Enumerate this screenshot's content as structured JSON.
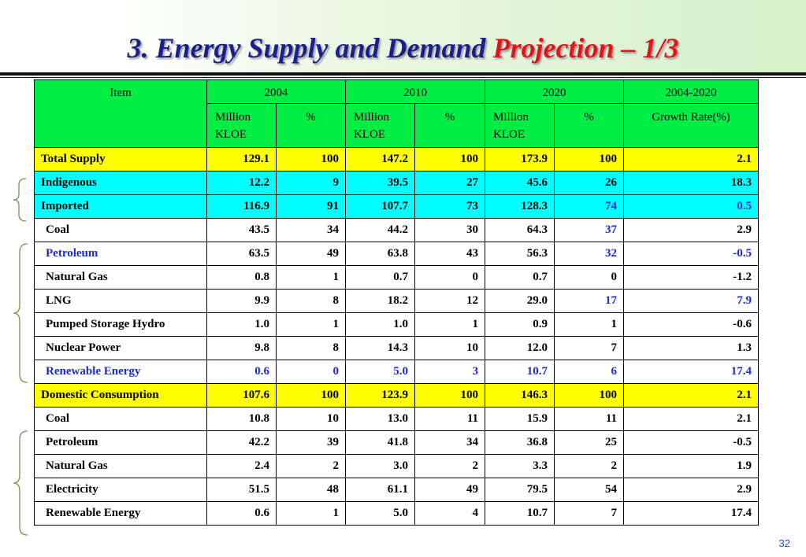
{
  "title": {
    "part1": "3. Energy Supply and Demand",
    "part2": "Projection – 1/3"
  },
  "page_number": "32",
  "header": {
    "item": "Item",
    "years": [
      "2004",
      "2010",
      "2020",
      "2004-2020"
    ],
    "unit_line1": "Million",
    "unit_line2": "KLOE",
    "percent": "%",
    "growth": "Growth Rate(%)"
  },
  "rows": [
    {
      "style": "yellow",
      "label": "Total Supply",
      "v": [
        "129.1",
        "100",
        "147.2",
        "100",
        "173.9",
        "100",
        "2.1"
      ],
      "blue": []
    },
    {
      "style": "cyan",
      "label": "Indigenous",
      "v": [
        "12.2",
        "9",
        "39.5",
        "27",
        "45.6",
        "26",
        "18.3"
      ],
      "blue": []
    },
    {
      "style": "cyan",
      "label": "Imported",
      "v": [
        "116.9",
        "91",
        "107.7",
        "73",
        "128.3",
        "74",
        "0.5"
      ],
      "blue": [
        5,
        6
      ]
    },
    {
      "style": "white",
      "label": "Coal",
      "v": [
        "43.5",
        "34",
        "44.2",
        "30",
        "64.3",
        "37",
        "2.9"
      ],
      "blue": [
        5
      ]
    },
    {
      "style": "white",
      "label": "Petroleum",
      "label_blue": true,
      "v": [
        "63.5",
        "49",
        "63.8",
        "43",
        "56.3",
        "32",
        "-0.5"
      ],
      "blue": [
        5,
        6
      ]
    },
    {
      "style": "white",
      "label": "Natural Gas",
      "v": [
        "0.8",
        "1",
        "0.7",
        "0",
        "0.7",
        "0",
        "-1.2"
      ],
      "blue": []
    },
    {
      "style": "white",
      "label": "LNG",
      "v": [
        "9.9",
        "8",
        "18.2",
        "12",
        "29.0",
        "17",
        "7.9"
      ],
      "blue": [
        5,
        6
      ]
    },
    {
      "style": "white",
      "label": "Pumped Storage Hydro",
      "v": [
        "1.0",
        "1",
        "1.0",
        "1",
        "0.9",
        "1",
        "-0.6"
      ],
      "blue": []
    },
    {
      "style": "white",
      "label": "Nuclear Power",
      "v": [
        "9.8",
        "8",
        "14.3",
        "10",
        "12.0",
        "7",
        "1.3"
      ],
      "blue": []
    },
    {
      "style": "white",
      "label": "Renewable Energy",
      "label_blue": true,
      "v": [
        "0.6",
        "0",
        "5.0",
        "3",
        "10.7",
        "6",
        "17.4"
      ],
      "blue": [
        0,
        1,
        2,
        3,
        4,
        5,
        6
      ]
    },
    {
      "style": "yellow",
      "label": "Domestic Consumption",
      "v": [
        "107.6",
        "100",
        "123.9",
        "100",
        "146.3",
        "100",
        "2.1"
      ],
      "blue": []
    },
    {
      "style": "white",
      "label": "Coal",
      "v": [
        "10.8",
        "10",
        "13.0",
        "11",
        "15.9",
        "11",
        "2.1"
      ],
      "blue": []
    },
    {
      "style": "white",
      "label": "Petroleum",
      "v": [
        "42.2",
        "39",
        "41.8",
        "34",
        "36.8",
        "25",
        "-0.5"
      ],
      "blue": []
    },
    {
      "style": "white",
      "label": "Natural Gas",
      "v": [
        "2.4",
        "2",
        "3.0",
        "2",
        "3.3",
        "2",
        "1.9"
      ],
      "blue": []
    },
    {
      "style": "white",
      "label": "Electricity",
      "v": [
        "51.5",
        "48",
        "61.1",
        "49",
        "79.5",
        "54",
        "2.9"
      ],
      "blue": []
    },
    {
      "style": "white",
      "label": "Renewable Energy",
      "v": [
        "0.6",
        "1",
        "5.0",
        "4",
        "10.7",
        "7",
        "17.4"
      ],
      "blue": []
    }
  ],
  "colors": {
    "header_green": "#00ee44",
    "yellow": "#ffff00",
    "cyan": "#00ffff",
    "title_blue": "#1a1f8c",
    "title_red": "#e0141a",
    "highlight_blue": "#1a2ad4",
    "brace_green": "#6a9a4a"
  }
}
